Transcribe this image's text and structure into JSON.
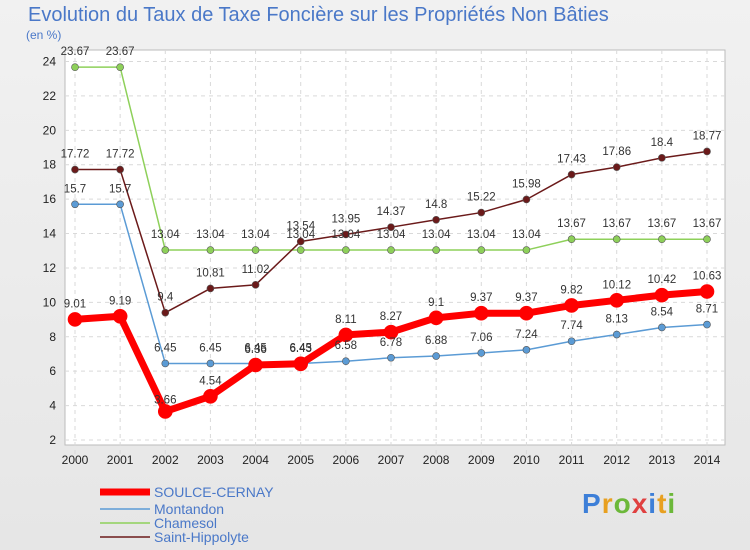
{
  "title": "Evolution du Taux de Taxe Foncière sur les Propriétés Non Bâties",
  "unit_label": "(en %)",
  "logo": "Proxiti",
  "colors": {
    "soulce": "#ff0000",
    "montandon": "#5b9bd5",
    "chamesol": "#8ed05a",
    "saint_hippolyte": "#6b1a1a"
  },
  "chart_data": {
    "type": "line",
    "title": "Evolution du Taux de Taxe Foncière sur les Propriétés Non Bâties",
    "ylabel": "(en %)",
    "ylim": [
      2,
      24
    ],
    "yticks": [
      2,
      4,
      6,
      8,
      10,
      12,
      14,
      16,
      18,
      20,
      22,
      24
    ],
    "grid": true,
    "legend_position": "bottom-left",
    "x": [
      "2000",
      "2001",
      "2002",
      "2003",
      "2004",
      "2005",
      "2006",
      "2007",
      "2008",
      "2009",
      "2010",
      "2011",
      "2012",
      "2013",
      "2014"
    ],
    "series": [
      {
        "name": "SOULCE-CERNAY",
        "color": "#ff0000",
        "values": [
          9.01,
          9.19,
          3.66,
          4.54,
          6.36,
          6.43,
          8.11,
          8.27,
          9.1,
          9.37,
          9.37,
          9.82,
          10.12,
          10.42,
          10.63
        ],
        "labels": [
          "9.01",
          "9.19",
          "3.66",
          "4.54",
          "6.36",
          "6.43",
          "8.11",
          "8.27",
          "9.1",
          "9.37",
          "9.37",
          "9.82",
          "10.12",
          "10.42",
          "10.63"
        ]
      },
      {
        "name": "Montandon",
        "color": "#5b9bd5",
        "values": [
          15.7,
          15.7,
          6.45,
          6.45,
          6.45,
          6.45,
          6.58,
          6.78,
          6.88,
          7.06,
          7.24,
          7.74,
          8.13,
          8.54,
          8.71
        ],
        "labels": [
          "15.7",
          "15.7",
          "6.45",
          "6.45",
          "6.45",
          "6.45",
          "6.58",
          "6.78",
          "6.88",
          "7.06",
          "7.24",
          "7.74",
          "8.13",
          "8.54",
          "8.71"
        ]
      },
      {
        "name": "Chamesol",
        "color": "#8ed05a",
        "values": [
          23.67,
          23.67,
          13.04,
          13.04,
          13.04,
          13.04,
          13.04,
          13.04,
          13.04,
          13.04,
          13.04,
          13.67,
          13.67,
          13.67,
          13.67
        ],
        "labels": [
          "23.67",
          "23.67",
          "13.04",
          "13.04",
          "13.04",
          "13.04",
          "13.04",
          "13.04",
          "13.04",
          "13.04",
          "13.04",
          "13.67",
          "13.67",
          "13.67",
          "13.67"
        ]
      },
      {
        "name": "Saint-Hippolyte",
        "color": "#6b1a1a",
        "values": [
          17.72,
          17.72,
          9.4,
          10.81,
          11.02,
          13.54,
          13.95,
          14.37,
          14.8,
          15.22,
          15.98,
          17.43,
          17.86,
          18.4,
          18.77
        ],
        "labels": [
          "17.72",
          "17.72",
          "9.4",
          "10.81",
          "11.02",
          "13.54",
          "13.95",
          "14.37",
          "14.8",
          "15.22",
          "15.98",
          "17.43",
          "17.86",
          "18.4",
          "18.77"
        ]
      }
    ]
  }
}
